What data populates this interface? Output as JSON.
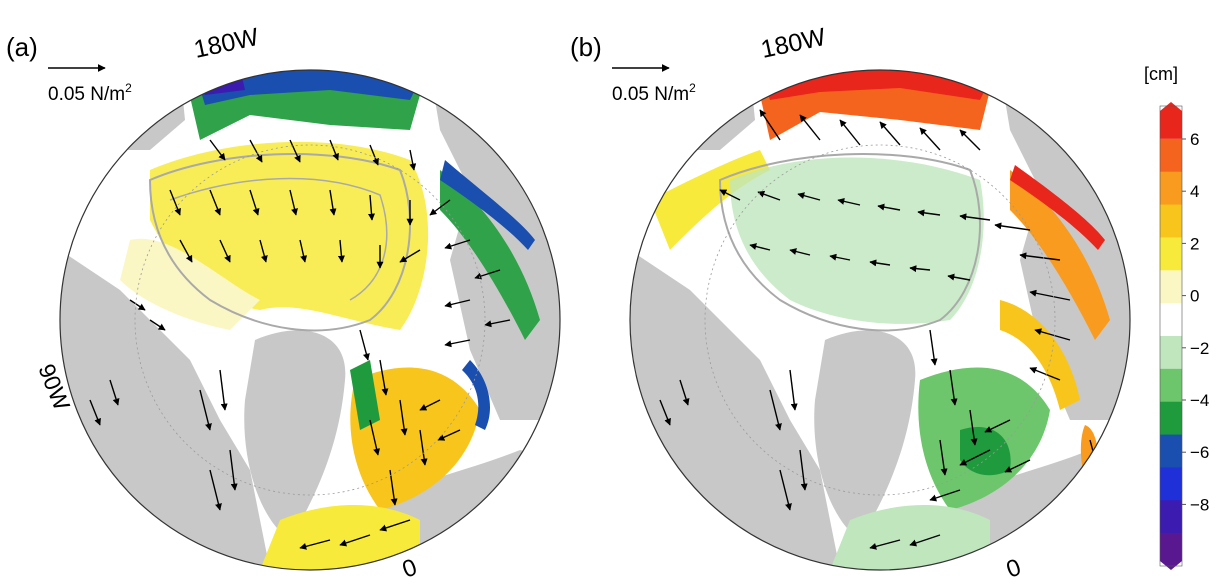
{
  "panels": [
    {
      "label": "(a)",
      "scale_text": "0.05 N/m",
      "scale_superscript": "2",
      "lon_labels": {
        "top": "180W",
        "left": "90W",
        "bottom": "0"
      },
      "palette_note": "green/blue = negative, yellow = positive"
    },
    {
      "label": "(b)",
      "scale_text": "0.05 N/m",
      "scale_superscript": "2",
      "lon_labels": {
        "top": "180W",
        "bottom": "0"
      },
      "palette_note": "green = negative shelf, red/orange = positive shelf"
    }
  ],
  "colorbar": {
    "unit": "[cm]",
    "ticks": [
      "6",
      "4",
      "2",
      "0",
      "−2",
      "−4",
      "−6",
      "−8"
    ],
    "colors": [
      "#e8261c",
      "#f5641e",
      "#f89b1e",
      "#f7c51c",
      "#f7ea3a",
      "#fbf7c4",
      "#ffffff",
      "#bfe6bd",
      "#6dc66b",
      "#1f9a3d",
      "#1a4fb0",
      "#2030d8",
      "#3b1bb0",
      "#5a1890"
    ]
  },
  "colors": {
    "land": "#c8c8c8",
    "ocean_border": "#333333",
    "arrow": "#000000",
    "bathymetry": "#a9a9a9"
  }
}
